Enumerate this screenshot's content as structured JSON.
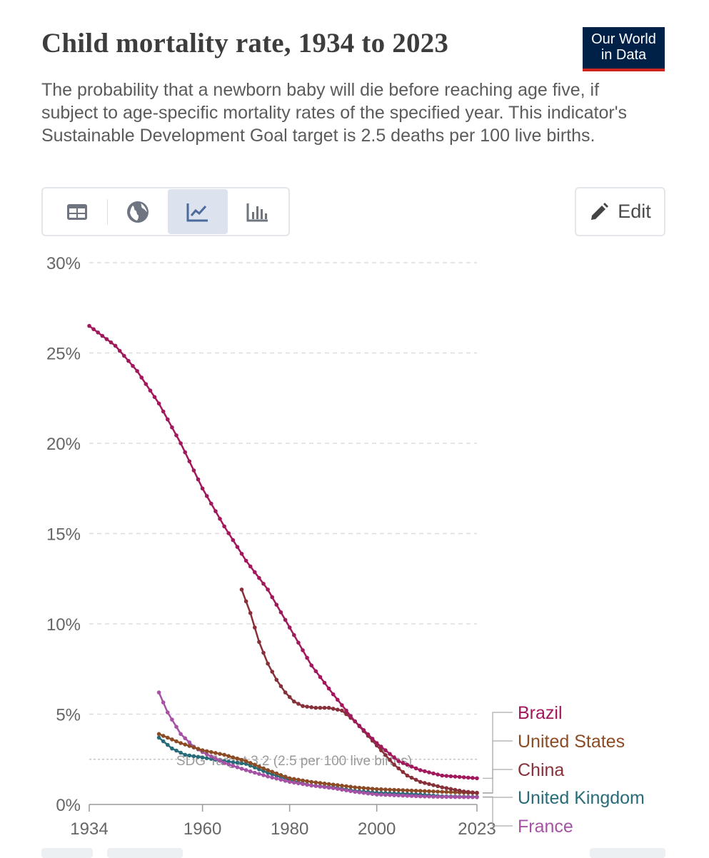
{
  "header": {
    "title": "Child mortality rate, 1934 to 2023",
    "logo_line1": "Our World",
    "logo_line2": "in Data",
    "subtitle": "The probability that a newborn baby will die before reaching age five, if subject to age-specific mortality rates of the specified year. This indicator's Sustainable Development Goal target is 2.5 deaths per 100 live births."
  },
  "toolbar": {
    "tabs": [
      {
        "name": "table-tab",
        "icon": "table-icon"
      },
      {
        "name": "map-tab",
        "icon": "globe-icon"
      },
      {
        "name": "chart-tab",
        "icon": "line-chart-icon",
        "active": true
      },
      {
        "name": "bar-tab",
        "icon": "bar-chart-icon"
      }
    ],
    "edit_label": "Edit",
    "edit_icon": "pencil-icon"
  },
  "colors": {
    "brazil": "#a2185c",
    "united_states": "#8c4b24",
    "china": "#883039",
    "united_kingdom": "#286b79",
    "france": "#a653a6",
    "grid": "#dddddd",
    "axis_text": "#666666"
  },
  "chart_data": {
    "type": "line",
    "title": "Child mortality rate, 1934 to 2023",
    "xlabel": "",
    "ylabel": "",
    "xlim": [
      1934,
      2023
    ],
    "ylim": [
      0,
      30
    ],
    "x_ticks": [
      {
        "value": 1934,
        "label": "1934"
      },
      {
        "value": 1960,
        "label": "1960"
      },
      {
        "value": 1980,
        "label": "1980"
      },
      {
        "value": 2000,
        "label": "2000"
      },
      {
        "value": 2023,
        "label": "2023"
      }
    ],
    "y_ticks": [
      {
        "value": 0,
        "label": "0%"
      },
      {
        "value": 5,
        "label": "5%"
      },
      {
        "value": 10,
        "label": "10%"
      },
      {
        "value": 15,
        "label": "15%"
      },
      {
        "value": 20,
        "label": "20%"
      },
      {
        "value": 25,
        "label": "25%"
      },
      {
        "value": 30,
        "label": "30%"
      }
    ],
    "reference_line": {
      "value": 2.5,
      "label": "SDG Target 3.2 (2.5 per 100 live births)"
    },
    "series": [
      {
        "name": "Brazil",
        "color_key": "brazil",
        "points": [
          [
            1934,
            26.5
          ],
          [
            1940,
            25.4
          ],
          [
            1945,
            24.0
          ],
          [
            1950,
            22.2
          ],
          [
            1955,
            20.0
          ],
          [
            1960,
            17.5
          ],
          [
            1965,
            15.4
          ],
          [
            1970,
            13.5
          ],
          [
            1975,
            11.9
          ],
          [
            1980,
            9.8
          ],
          [
            1985,
            7.7
          ],
          [
            1990,
            6.1
          ],
          [
            1995,
            4.6
          ],
          [
            2000,
            3.4
          ],
          [
            2005,
            2.4
          ],
          [
            2010,
            1.9
          ],
          [
            2015,
            1.6
          ],
          [
            2023,
            1.45
          ]
        ]
      },
      {
        "name": "United States",
        "color_key": "united_states",
        "points": [
          [
            1950,
            3.9
          ],
          [
            1955,
            3.4
          ],
          [
            1960,
            3.0
          ],
          [
            1965,
            2.75
          ],
          [
            1970,
            2.4
          ],
          [
            1975,
            1.9
          ],
          [
            1980,
            1.45
          ],
          [
            1985,
            1.25
          ],
          [
            1990,
            1.1
          ],
          [
            1995,
            0.95
          ],
          [
            2000,
            0.85
          ],
          [
            2005,
            0.8
          ],
          [
            2010,
            0.75
          ],
          [
            2015,
            0.7
          ],
          [
            2023,
            0.63
          ]
        ]
      },
      {
        "name": "China",
        "color_key": "china",
        "points": [
          [
            1969,
            11.9
          ],
          [
            1971,
            10.6
          ],
          [
            1973,
            9.0
          ],
          [
            1975,
            7.8
          ],
          [
            1977,
            6.9
          ],
          [
            1979,
            6.2
          ],
          [
            1981,
            5.7
          ],
          [
            1983,
            5.45
          ],
          [
            1986,
            5.35
          ],
          [
            1989,
            5.35
          ],
          [
            1992,
            5.2
          ],
          [
            1995,
            4.6
          ],
          [
            1998,
            3.8
          ],
          [
            2001,
            3.0
          ],
          [
            2004,
            2.2
          ],
          [
            2007,
            1.6
          ],
          [
            2010,
            1.25
          ],
          [
            2015,
            0.95
          ],
          [
            2020,
            0.72
          ],
          [
            2023,
            0.65
          ]
        ]
      },
      {
        "name": "United Kingdom",
        "color_key": "united_kingdom",
        "points": [
          [
            1950,
            3.7
          ],
          [
            1953,
            3.1
          ],
          [
            1956,
            2.75
          ],
          [
            1960,
            2.6
          ],
          [
            1965,
            2.4
          ],
          [
            1970,
            2.25
          ],
          [
            1975,
            1.75
          ],
          [
            1980,
            1.35
          ],
          [
            1985,
            1.05
          ],
          [
            1990,
            0.95
          ],
          [
            1995,
            0.75
          ],
          [
            2000,
            0.65
          ],
          [
            2005,
            0.6
          ],
          [
            2010,
            0.55
          ],
          [
            2015,
            0.45
          ],
          [
            2023,
            0.42
          ]
        ]
      },
      {
        "name": "France",
        "color_key": "france",
        "points": [
          [
            1950,
            6.2
          ],
          [
            1952,
            5.1
          ],
          [
            1955,
            3.9
          ],
          [
            1958,
            3.2
          ],
          [
            1960,
            2.9
          ],
          [
            1965,
            2.3
          ],
          [
            1970,
            1.9
          ],
          [
            1975,
            1.55
          ],
          [
            1980,
            1.25
          ],
          [
            1985,
            1.05
          ],
          [
            1990,
            0.9
          ],
          [
            1995,
            0.7
          ],
          [
            2000,
            0.55
          ],
          [
            2005,
            0.5
          ],
          [
            2010,
            0.45
          ],
          [
            2015,
            0.42
          ],
          [
            2023,
            0.4
          ]
        ]
      }
    ],
    "legend": [
      "Brazil",
      "United States",
      "China",
      "United Kingdom",
      "France"
    ],
    "legend_placement": "right"
  }
}
